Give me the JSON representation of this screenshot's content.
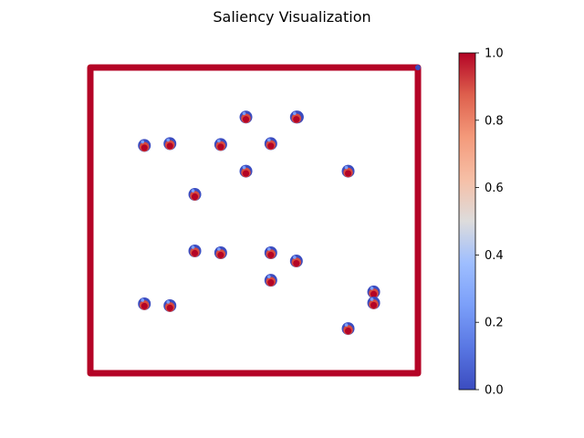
{
  "title": "Saliency Visualization",
  "chart_data": {
    "type": "scatter",
    "title": "Saliency Visualization",
    "xlim": [
      0,
      100
    ],
    "ylim": [
      0,
      100
    ],
    "axes_visible": false,
    "colormap": "coolwarm",
    "colorbar": {
      "min": 0.0,
      "max": 1.0,
      "ticks": [
        0.0,
        0.2,
        0.4,
        0.6,
        0.8,
        1.0
      ],
      "tick_labels": [
        "0.0",
        "0.2",
        "0.4",
        "0.6",
        "0.8",
        "1.0"
      ],
      "placement": "right"
    },
    "frame": {
      "corners": [
        [
          0,
          0
        ],
        [
          100,
          0
        ],
        [
          100,
          100
        ],
        [
          0,
          100
        ]
      ],
      "saliency": 1.0
    },
    "markers": [
      {
        "x": 16.5,
        "y": 74.5
      },
      {
        "x": 24.3,
        "y": 75.1
      },
      {
        "x": 39.8,
        "y": 74.8
      },
      {
        "x": 47.5,
        "y": 83.8
      },
      {
        "x": 63.2,
        "y": 83.8
      },
      {
        "x": 62.9,
        "y": 83.8
      },
      {
        "x": 31.9,
        "y": 58.5
      },
      {
        "x": 55.1,
        "y": 75.1
      },
      {
        "x": 47.5,
        "y": 66.1
      },
      {
        "x": 78.7,
        "y": 66.1
      },
      {
        "x": 31.9,
        "y": 40.0
      },
      {
        "x": 39.8,
        "y": 39.4
      },
      {
        "x": 55.1,
        "y": 39.4
      },
      {
        "x": 62.9,
        "y": 36.7
      },
      {
        "x": 55.1,
        "y": 30.4
      },
      {
        "x": 16.5,
        "y": 22.7
      },
      {
        "x": 24.3,
        "y": 22.1
      },
      {
        "x": 86.5,
        "y": 26.6
      },
      {
        "x": 86.5,
        "y": 23.0
      },
      {
        "x": 78.7,
        "y": 14.6
      }
    ],
    "marker_colors": {
      "low": "#3b4cc0",
      "high": "#b40426"
    }
  }
}
